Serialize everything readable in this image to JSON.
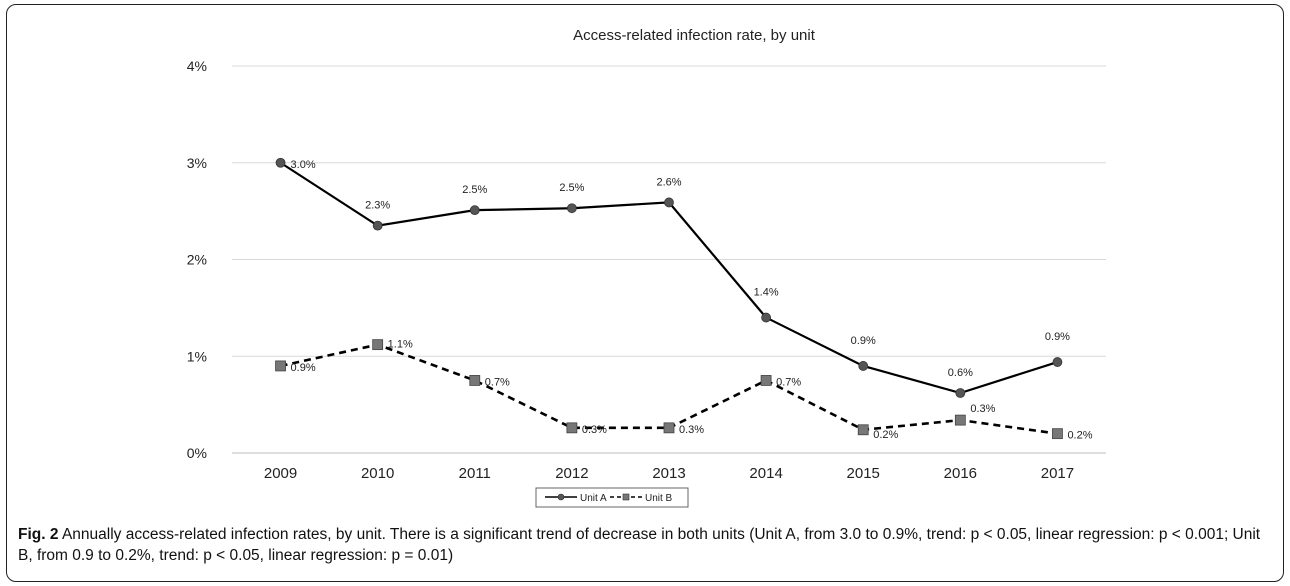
{
  "chart_data": {
    "type": "line",
    "title": "Access-related infection rate, by unit",
    "categories": [
      "2009",
      "2010",
      "2011",
      "2012",
      "2013",
      "2014",
      "2015",
      "2016",
      "2017"
    ],
    "ylim": [
      0,
      4
    ],
    "yticks": [
      0,
      1,
      2,
      3,
      4
    ],
    "ytick_labels": [
      "0%",
      "1%",
      "2%",
      "3%",
      "4%"
    ],
    "grid": true,
    "legend_position": "bottom",
    "series": [
      {
        "name": "Unit A",
        "values": [
          3.0,
          2.35,
          2.51,
          2.53,
          2.59,
          1.4,
          0.9,
          0.62,
          0.94
        ],
        "labels": [
          "3.0%",
          "2.3%",
          "2.5%",
          "2.5%",
          "2.6%",
          "1.4%",
          "0.9%",
          "0.6%",
          "0.9%"
        ],
        "style": "solid",
        "marker": "circle",
        "color": "#000000",
        "marker_color": "#555555"
      },
      {
        "name": "Unit B",
        "values": [
          0.9,
          1.12,
          0.75,
          0.26,
          0.26,
          0.75,
          0.24,
          0.34,
          0.2
        ],
        "labels": [
          "0.9%",
          "1.1%",
          "0.7%",
          "0.3%",
          "0.3%",
          "0.7%",
          "0.2%",
          "0.3%",
          "0.2%"
        ],
        "style": "dashed",
        "marker": "square",
        "color": "#000000",
        "marker_color": "#777777"
      }
    ]
  },
  "caption": {
    "label": "Fig. 2",
    "text": "Annually access-related infection rates, by unit. There is a significant trend of decrease in both units (Unit A, from 3.0 to 0.9%, trend: p < 0.05, linear regression: p < 0.001; Unit B, from 0.9 to 0.2%, trend: p < 0.05, linear regression: p = 0.01)"
  }
}
